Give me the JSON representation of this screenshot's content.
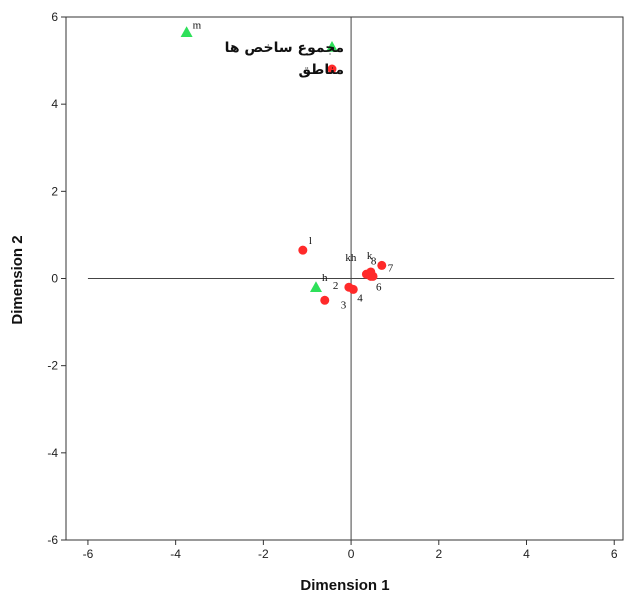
{
  "chart_data": {
    "type": "scatter",
    "title": "",
    "xlabel": "Dimension 1",
    "ylabel": "Dimension 2",
    "xlim": [
      -6.5,
      6.2
    ],
    "ylim": [
      -6,
      6
    ],
    "xticks": [
      -6,
      -4,
      -2,
      0,
      2,
      4,
      6
    ],
    "yticks": [
      -6,
      -4,
      -2,
      0,
      2,
      4,
      6
    ],
    "grid": false,
    "reference_lines": {
      "x": 0,
      "y": 0
    },
    "legend_position": "top-center",
    "series": [
      {
        "name": "مجموع ساخص ها",
        "marker": "triangle",
        "color": "#2ee05a",
        "points": [
          {
            "x": -3.75,
            "y": 5.65,
            "label": "m"
          },
          {
            "x": -0.8,
            "y": -0.2,
            "label": "h"
          }
        ]
      },
      {
        "name": "مناطق",
        "marker": "circle",
        "color": "#ff2a2a",
        "points": [
          {
            "x": -1.1,
            "y": 0.65,
            "label": "l"
          },
          {
            "x": -0.6,
            "y": -0.5,
            "label": "3"
          },
          {
            "x": -0.05,
            "y": -0.2,
            "label": "2"
          },
          {
            "x": 0.05,
            "y": -0.25,
            "label": "4"
          },
          {
            "x": 0.35,
            "y": 0.1,
            "label": "kh"
          },
          {
            "x": 0.45,
            "y": 0.15,
            "label": "k"
          },
          {
            "x": 0.45,
            "y": 0.05,
            "label": "8"
          },
          {
            "x": 0.5,
            "y": 0.05,
            "label": "6"
          },
          {
            "x": 0.7,
            "y": 0.3,
            "label": "7"
          }
        ]
      }
    ]
  }
}
